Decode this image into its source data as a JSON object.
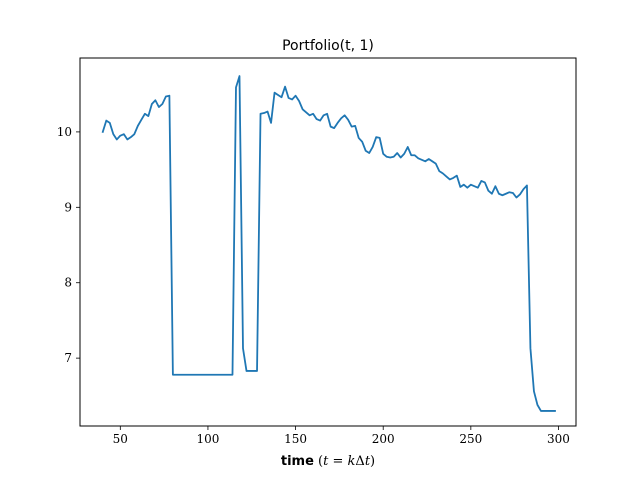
{
  "chart_data": {
    "type": "line",
    "title": "Portfolio(t, 1)",
    "xlabel": {
      "bold": "time",
      "open": " (",
      "t": "t",
      "eq": " = ",
      "k": "k",
      "delta": "Δ",
      "t2": "t",
      "close": ")"
    },
    "ylabel": "",
    "xlim": [
      27,
      310
    ],
    "ylim": [
      6.1,
      10.98
    ],
    "grid": false,
    "xticks": [
      50,
      100,
      150,
      200,
      250,
      300
    ],
    "yticks": [
      7,
      8,
      9,
      10
    ],
    "series": [
      {
        "color": "#1f77b4",
        "x": [
          40,
          42,
          44,
          46,
          48,
          50,
          52,
          54,
          56,
          58,
          60,
          62,
          64,
          66,
          68,
          70,
          72,
          74,
          76,
          78,
          80,
          82,
          84,
          86,
          88,
          90,
          92,
          94,
          96,
          98,
          100,
          102,
          104,
          106,
          108,
          110,
          112,
          114,
          116,
          118,
          120,
          122,
          124,
          126,
          128,
          130,
          132,
          134,
          136,
          138,
          140,
          142,
          144,
          146,
          148,
          150,
          152,
          154,
          156,
          158,
          160,
          162,
          164,
          166,
          168,
          170,
          172,
          174,
          176,
          178,
          180,
          182,
          184,
          186,
          188,
          190,
          192,
          194,
          196,
          198,
          200,
          202,
          204,
          206,
          208,
          210,
          212,
          214,
          216,
          218,
          220,
          222,
          224,
          226,
          228,
          230,
          232,
          234,
          236,
          238,
          240,
          242,
          244,
          246,
          248,
          250,
          252,
          254,
          256,
          258,
          260,
          262,
          264,
          266,
          268,
          270,
          272,
          274,
          276,
          278,
          280,
          282,
          284,
          286,
          288,
          290,
          292,
          294,
          296,
          298
        ],
        "values": [
          10.0,
          10.15,
          10.12,
          9.97,
          9.9,
          9.95,
          9.97,
          9.9,
          9.93,
          9.97,
          10.08,
          10.16,
          10.24,
          10.21,
          10.37,
          10.42,
          10.33,
          10.37,
          10.47,
          10.48,
          6.78,
          6.78,
          6.78,
          6.78,
          6.78,
          6.78,
          6.78,
          6.78,
          6.78,
          6.78,
          6.78,
          6.78,
          6.78,
          6.78,
          6.78,
          6.78,
          6.78,
          6.78,
          10.59,
          10.74,
          7.13,
          6.83,
          6.83,
          6.83,
          6.83,
          10.24,
          10.25,
          10.27,
          10.12,
          10.52,
          10.49,
          10.46,
          10.6,
          10.45,
          10.43,
          10.48,
          10.41,
          10.3,
          10.26,
          10.22,
          10.24,
          10.17,
          10.15,
          10.22,
          10.24,
          10.07,
          10.05,
          10.12,
          10.18,
          10.22,
          10.16,
          10.07,
          10.08,
          9.92,
          9.87,
          9.75,
          9.72,
          9.8,
          9.93,
          9.92,
          9.71,
          9.67,
          9.66,
          9.67,
          9.72,
          9.66,
          9.71,
          9.8,
          9.69,
          9.69,
          9.65,
          9.63,
          9.61,
          9.64,
          9.61,
          9.58,
          9.48,
          9.45,
          9.41,
          9.37,
          9.39,
          9.42,
          9.27,
          9.3,
          9.26,
          9.3,
          9.28,
          9.26,
          9.35,
          9.33,
          9.22,
          9.18,
          9.28,
          9.18,
          9.16,
          9.18,
          9.2,
          9.19,
          9.13,
          9.17,
          9.24,
          9.29,
          7.13,
          6.56,
          6.38,
          6.3,
          6.3,
          6.3,
          6.3,
          6.3
        ]
      }
    ]
  }
}
